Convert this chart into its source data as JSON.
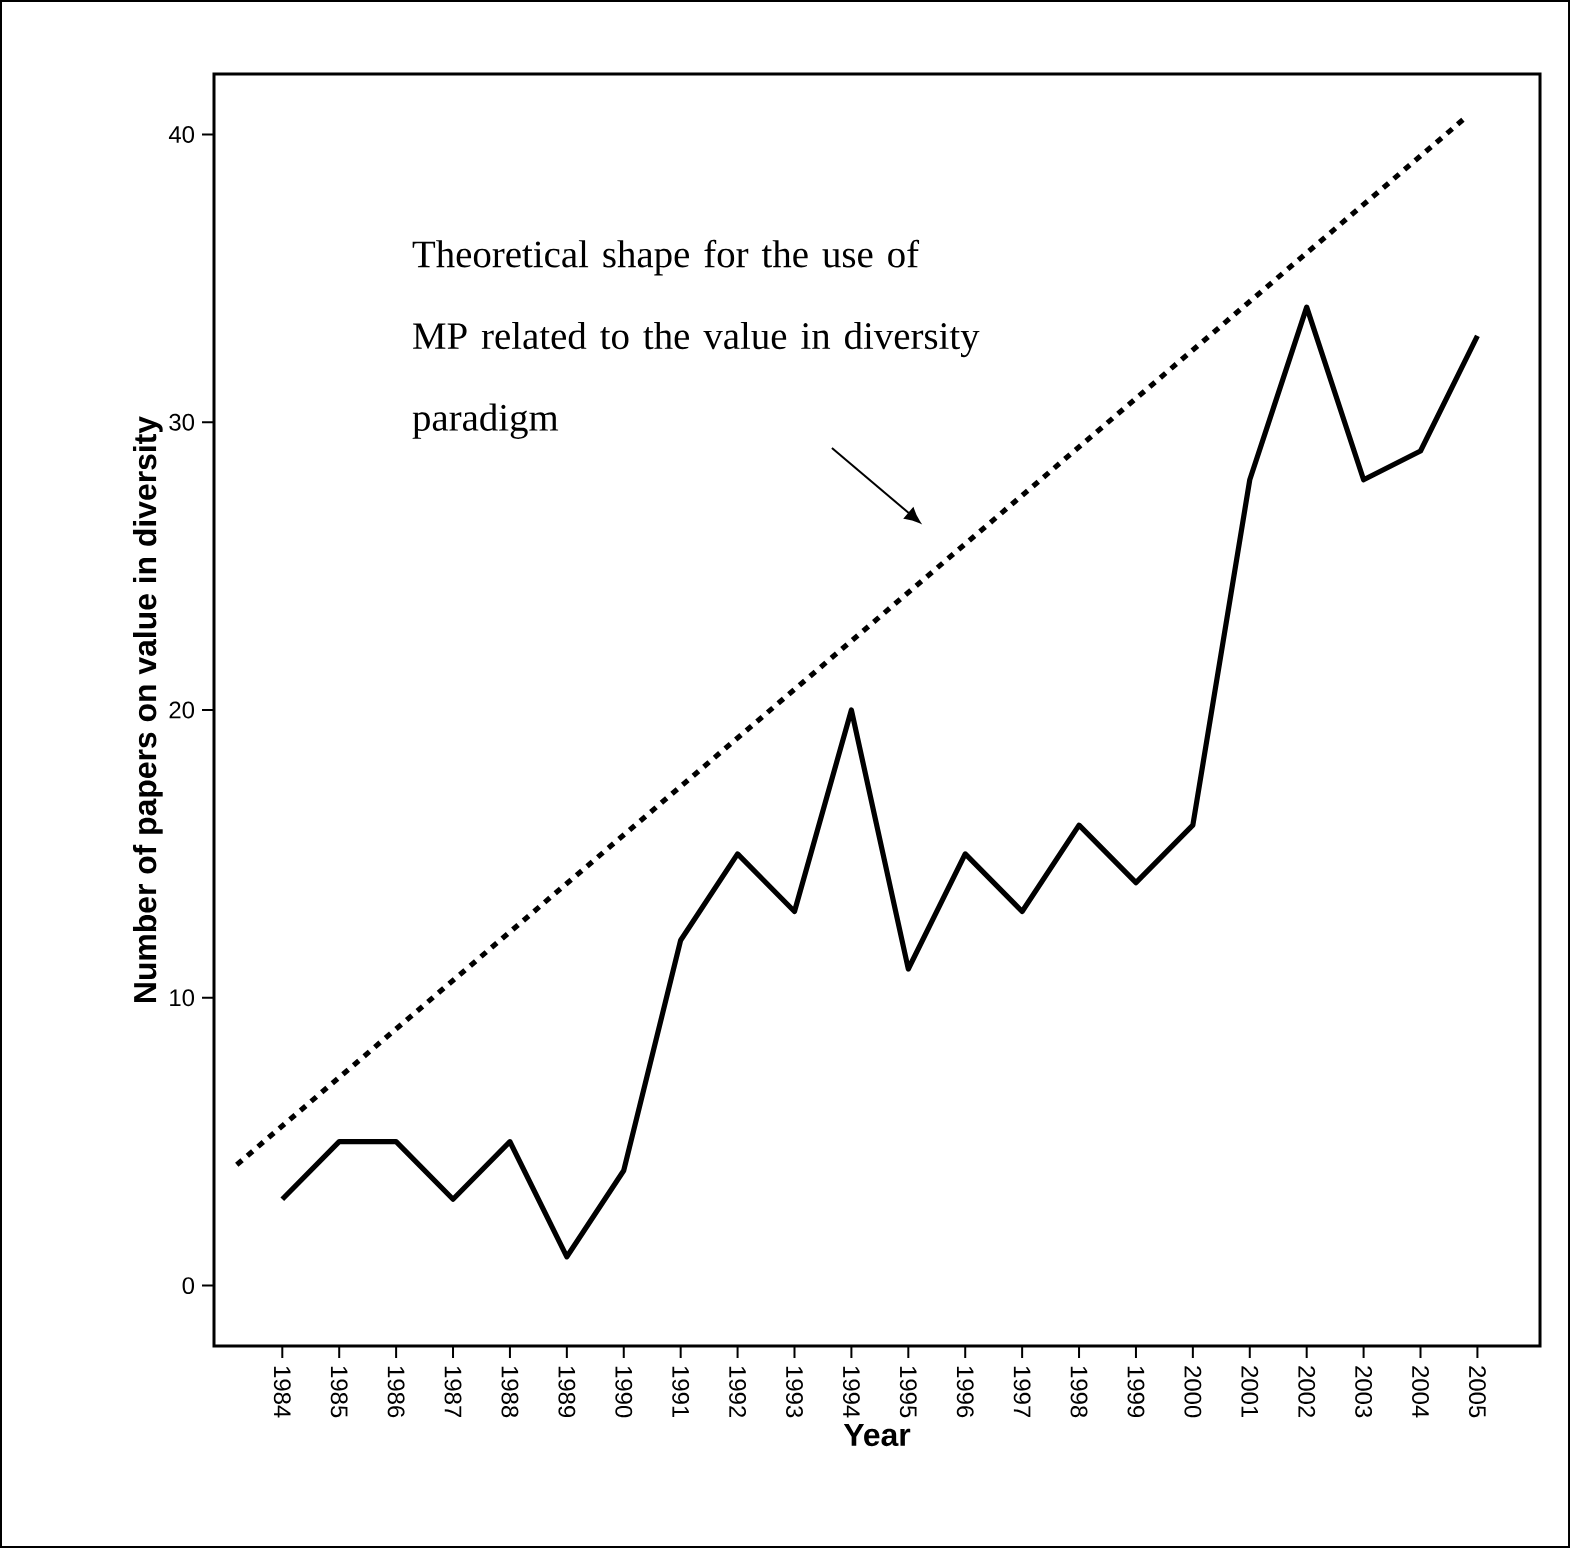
{
  "chart_data": {
    "type": "line",
    "xlabel": "Year",
    "ylabel": "Number of papers on value in diversity",
    "x": [
      1984,
      1985,
      1986,
      1987,
      1988,
      1989,
      1990,
      1991,
      1992,
      1993,
      1994,
      1995,
      1996,
      1997,
      1998,
      1999,
      2000,
      2001,
      2002,
      2003,
      2004,
      2005
    ],
    "series": [
      {
        "color": "#000000",
        "line_style": "solid",
        "values": [
          3,
          5,
          5,
          3,
          5,
          1,
          4,
          12,
          15,
          13,
          20,
          11,
          15,
          13,
          16,
          14,
          16,
          28,
          34,
          28,
          29,
          33
        ]
      },
      {
        "color": "#000000",
        "line_style": "dotted",
        "x": [
          1983.2,
          2004.8
        ],
        "values": [
          4.2,
          40.6
        ]
      }
    ],
    "xlim": [
      1982.8,
      2006.1
    ],
    "ylim": [
      -2.1,
      42.1
    ],
    "xticks": [
      1984,
      1985,
      1986,
      1987,
      1988,
      1989,
      1990,
      1991,
      1992,
      1993,
      1994,
      1995,
      1996,
      1997,
      1998,
      1999,
      2000,
      2001,
      2002,
      2003,
      2004,
      2005
    ],
    "yticks": [
      0,
      10,
      20,
      30,
      40
    ],
    "marker": "none",
    "annotations": [
      "Theoretical shape for the use of MP related to the value in diversity paradigm"
    ]
  }
}
